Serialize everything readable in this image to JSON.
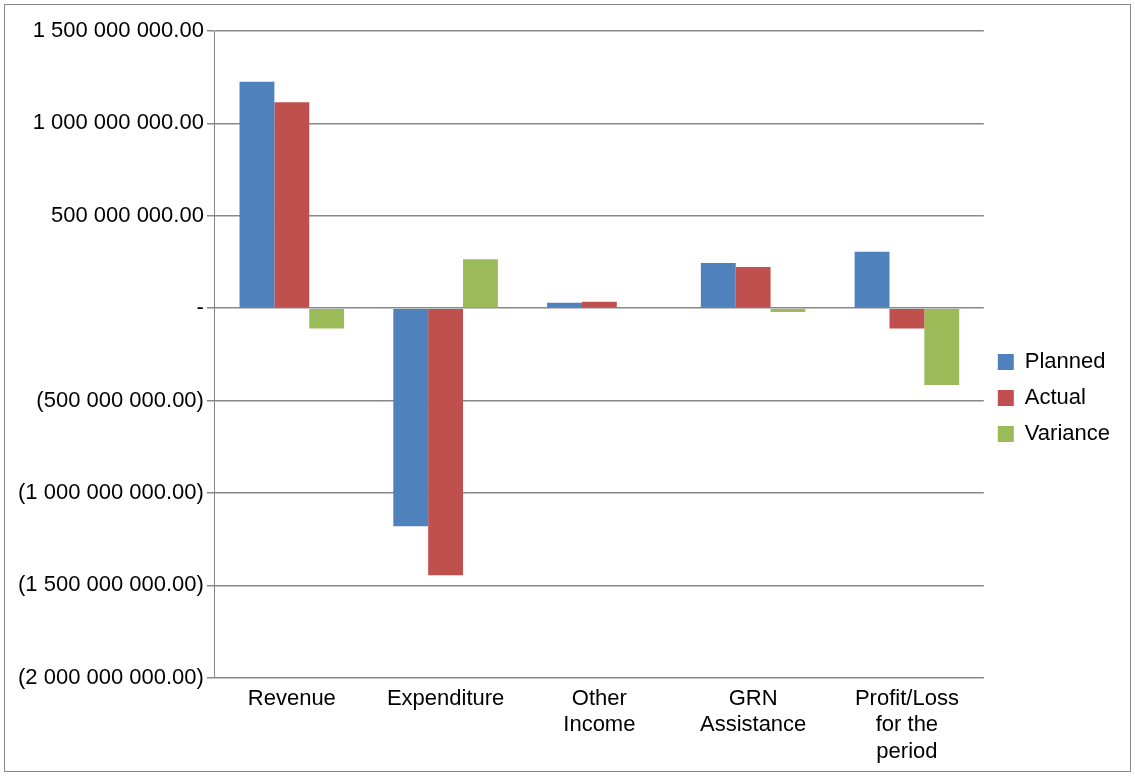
{
  "chart_data": {
    "type": "bar",
    "categories": [
      "Revenue",
      "Expenditure",
      "Other Income",
      "GRN Assistance",
      "Profit/Loss for the period"
    ],
    "series": [
      {
        "name": "Planned",
        "color": "#4f81bd",
        "values": [
          1225000000,
          -1180000000,
          30000000,
          245000000,
          305000000
        ]
      },
      {
        "name": "Actual",
        "color": "#c0504d",
        "values": [
          1115000000,
          -1445000000,
          35000000,
          223000000,
          -110000000
        ]
      },
      {
        "name": "Variance",
        "color": "#9bbb59",
        "values": [
          -110000000,
          265000000,
          0,
          -20000000,
          -415000000
        ]
      }
    ],
    "ylim": [
      -2000000000,
      1500000000
    ],
    "yticks": [
      {
        "value": -2000000000,
        "label": "(2 000 000 000.00)"
      },
      {
        "value": -1500000000,
        "label": "(1 500 000 000.00)"
      },
      {
        "value": -1000000000,
        "label": "(1 000 000 000.00)"
      },
      {
        "value": -500000000,
        "label": "(500 000 000.00)"
      },
      {
        "value": 0,
        "label": "-"
      },
      {
        "value": 500000000,
        "label": "500 000 000.00"
      },
      {
        "value": 1000000000,
        "label": "1 000 000 000.00"
      },
      {
        "value": 1500000000,
        "label": "1 500 000 000.00"
      }
    ],
    "grid": "y",
    "legend": "right"
  }
}
